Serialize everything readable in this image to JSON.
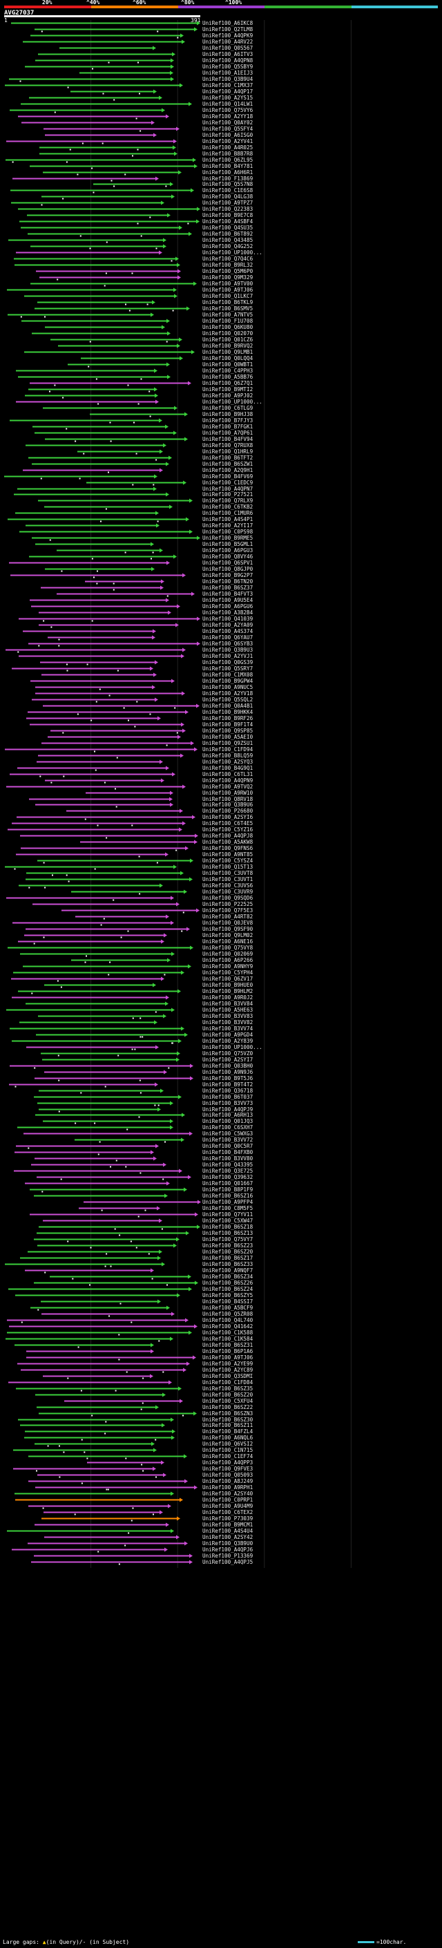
{
  "identity_scale": {
    "ticks": [
      "20%",
      "^40%",
      "^60%",
      "^80%",
      "^100%"
    ],
    "colors": [
      "#e41a1c",
      "#ff7f00",
      "#9c3cd0",
      "#33b233",
      "#3ec6d8"
    ]
  },
  "query": {
    "id": "AVG27037",
    "start": "1",
    "end": "391",
    "length": 391,
    "color": "#ffffff"
  },
  "hit_colors": {
    "green": "#3bd13b",
    "magenta": "#cc4fd6",
    "cyan": "#3ec6d8",
    "orange": "#ff8a00",
    "red": "#e41a1c"
  },
  "hits": [
    {
      "id": "UniRef100_A6IKC8",
      "c": "green"
    },
    {
      "id": "UniRef100_Q2TLM8",
      "c": "green"
    },
    {
      "id": "UniRef100_A4QPK9",
      "c": "green"
    },
    {
      "id": "UniRef100_A4RV22",
      "c": "green"
    },
    {
      "id": "UniRef100_Q0S567",
      "c": "green"
    },
    {
      "id": "UniRef100_A6ITV3",
      "c": "green"
    },
    {
      "id": "UniRef100_A4QPN8",
      "c": "green"
    },
    {
      "id": "UniRef100_Q5SBY9",
      "c": "green"
    },
    {
      "id": "UniRef100_A1EIJ3",
      "c": "green"
    },
    {
      "id": "UniRef100_Q3B9U4",
      "c": "green"
    },
    {
      "id": "UniRef100_C1MX37",
      "c": "green"
    },
    {
      "id": "UniRef100_A4QP17",
      "c": "green"
    },
    {
      "id": "UniRef100_A2YS15",
      "c": "green"
    },
    {
      "id": "UniRef100_Q14LW1",
      "c": "green"
    },
    {
      "id": "UniRef100_Q75VY6",
      "c": "green"
    },
    {
      "id": "UniRef100_A2YY18",
      "c": "magenta"
    },
    {
      "id": "UniRef100_Q0AY02",
      "c": "magenta"
    },
    {
      "id": "UniRef100_Q5SFY4",
      "c": "magenta"
    },
    {
      "id": "UniRef100_A6ISG0",
      "c": "magenta"
    },
    {
      "id": "UniRef100_A2YV41",
      "c": "magenta"
    },
    {
      "id": "UniRef100_A4R025",
      "c": "green"
    },
    {
      "id": "UniRef100_B8B7R8",
      "c": "green"
    },
    {
      "id": "UniRef100_Q6ZL95",
      "c": "green"
    },
    {
      "id": "UniRef100_B4Y781",
      "c": "green"
    },
    {
      "id": "UniRef100_A6H6R1",
      "c": "green"
    },
    {
      "id": "UniRef100_F13869",
      "c": "magenta"
    },
    {
      "id": "UniRef100_Q5S7N8",
      "c": "green"
    },
    {
      "id": "UniRef100_C1E6S8",
      "c": "green"
    },
    {
      "id": "UniRef100_Q4LG38",
      "c": "green"
    },
    {
      "id": "UniRef100_A9TPZ7",
      "c": "green"
    },
    {
      "id": "UniRef100_Q22383",
      "c": "green"
    },
    {
      "id": "UniRef100_B9E7C8",
      "c": "green"
    },
    {
      "id": "UniRef100_A4SBF4",
      "c": "green"
    },
    {
      "id": "UniRef100_Q4SU35",
      "c": "green"
    },
    {
      "id": "UniRef100_B6T892",
      "c": "green"
    },
    {
      "id": "UniRef100_Q43485",
      "c": "green"
    },
    {
      "id": "UniRef100_Q4G252",
      "c": "green"
    },
    {
      "id": "UniRef100_UP1000...",
      "c": "magenta"
    },
    {
      "id": "UniRef100_Q7Q4C6",
      "c": "green"
    },
    {
      "id": "UniRef100_B9RL32",
      "c": "green"
    },
    {
      "id": "UniRef100_Q5M6P0",
      "c": "magenta"
    },
    {
      "id": "UniRef100_Q9M329",
      "c": "magenta"
    },
    {
      "id": "UniRef100_A9TV00",
      "c": "green"
    },
    {
      "id": "UniRef100_A9TJ06",
      "c": "green"
    },
    {
      "id": "UniRef100_Q1LKC7",
      "c": "green"
    },
    {
      "id": "UniRef100_B6TKL9",
      "c": "green"
    },
    {
      "id": "UniRef100_B6SMV5",
      "c": "green"
    },
    {
      "id": "UniRef100_A7NTV5",
      "c": "green"
    },
    {
      "id": "UniRef100_F1U708",
      "c": "green"
    },
    {
      "id": "UniRef100_Q6KU80",
      "c": "green"
    },
    {
      "id": "UniRef100_Q02070",
      "c": "green"
    },
    {
      "id": "UniRef100_Q01CZ6",
      "c": "green"
    },
    {
      "id": "UniRef100_B9RVQ2",
      "c": "green"
    },
    {
      "id": "UniRef100_Q9LMB1",
      "c": "green"
    },
    {
      "id": "UniRef100_Q0LQQ4",
      "c": "green"
    },
    {
      "id": "UniRef100_Q0WBT1",
      "c": "green"
    },
    {
      "id": "UniRef100_C4PPH3",
      "c": "green"
    },
    {
      "id": "UniRef100_A5BB76",
      "c": "green"
    },
    {
      "id": "UniRef100_Q6Z7Q1",
      "c": "magenta"
    },
    {
      "id": "UniRef100_B9MTI2",
      "c": "green"
    },
    {
      "id": "UniRef100_A9PJ02",
      "c": "green"
    },
    {
      "id": "UniRef100_UP1000...",
      "c": "magenta"
    },
    {
      "id": "UniRef100_C6TLG9",
      "c": "green"
    },
    {
      "id": "UniRef100_B9HJ38",
      "c": "green"
    },
    {
      "id": "UniRef100_B7FJY3",
      "c": "green"
    },
    {
      "id": "UniRef100_B7FGK1",
      "c": "green"
    },
    {
      "id": "UniRef100_A7QP61",
      "c": "green"
    },
    {
      "id": "UniRef100_B4FV94",
      "c": "green"
    },
    {
      "id": "UniRef100_Q7RUX8",
      "c": "green"
    },
    {
      "id": "UniRef100_Q1HRL9",
      "c": "green"
    },
    {
      "id": "UniRef100_B6TFT2",
      "c": "green"
    },
    {
      "id": "UniRef100_B6SZW1",
      "c": "green"
    },
    {
      "id": "UniRef100_A2Q9H1",
      "c": "magenta"
    },
    {
      "id": "UniRef100_B4FV69",
      "c": "green"
    },
    {
      "id": "UniRef100_C1EDC9",
      "c": "green"
    },
    {
      "id": "UniRef100_A4QPN7",
      "c": "green"
    },
    {
      "id": "UniRef100_P27521",
      "c": "green"
    },
    {
      "id": "UniRef100_Q7RLX9",
      "c": "green"
    },
    {
      "id": "UniRef100_C6TKB2",
      "c": "green"
    },
    {
      "id": "UniRef100_C1MUR6",
      "c": "green"
    },
    {
      "id": "UniRef100_A4S4P1",
      "c": "green"
    },
    {
      "id": "UniRef100_A2YI17",
      "c": "green"
    },
    {
      "id": "UniRef100_C0PS98",
      "c": "green"
    },
    {
      "id": "UniRef100_B9RME5",
      "c": "green"
    },
    {
      "id": "UniRef100_B5GML1",
      "c": "green"
    },
    {
      "id": "UniRef100_A6PGU3",
      "c": "green"
    },
    {
      "id": "UniRef100_Q8VY46",
      "c": "green"
    },
    {
      "id": "UniRef100_Q6SPV1",
      "c": "magenta"
    },
    {
      "id": "UniRef100_Q8GJP0",
      "c": "green"
    },
    {
      "id": "UniRef100_B9G2P7",
      "c": "magenta"
    },
    {
      "id": "UniRef100_B6TN20",
      "c": "magenta"
    },
    {
      "id": "UniRef100_B6SZ37",
      "c": "magenta"
    },
    {
      "id": "UniRef100_B4FVT3",
      "c": "magenta"
    },
    {
      "id": "UniRef100_A9U5E4",
      "c": "magenta"
    },
    {
      "id": "UniRef100_A6PGU6",
      "c": "magenta"
    },
    {
      "id": "UniRef100_A3B2B4",
      "c": "magenta"
    },
    {
      "id": "UniRef100_Q41039",
      "c": "magenta"
    },
    {
      "id": "UniRef100_A2YA09",
      "c": "magenta"
    },
    {
      "id": "UniRef100_A4S374",
      "c": "magenta"
    },
    {
      "id": "UniRef100_Q6YAU7",
      "c": "magenta"
    },
    {
      "id": "UniRef100_Q6SYB3",
      "c": "magenta"
    },
    {
      "id": "UniRef100_Q3B9U3",
      "c": "magenta"
    },
    {
      "id": "UniRef100_A2YVJ1",
      "c": "magenta"
    },
    {
      "id": "UniRef100_Q0GS39",
      "c": "magenta"
    },
    {
      "id": "UniRef100_Q5SRY7",
      "c": "magenta"
    },
    {
      "id": "UniRef100_C1MX08",
      "c": "magenta"
    },
    {
      "id": "UniRef100_B9GPW4",
      "c": "magenta"
    },
    {
      "id": "UniRef100_A9NUC5",
      "c": "magenta"
    },
    {
      "id": "UniRef100_A2YV18",
      "c": "magenta"
    },
    {
      "id": "UniRef100_Q5SQL2",
      "c": "magenta"
    },
    {
      "id": "UniRef100_Q0A4B1",
      "c": "magenta"
    },
    {
      "id": "UniRef100_B9HKK4",
      "c": "magenta"
    },
    {
      "id": "UniRef100_B9RF26",
      "c": "magenta"
    },
    {
      "id": "UniRef100_B9F1T4",
      "c": "magenta"
    },
    {
      "id": "UniRef100_Q9SP85",
      "c": "magenta"
    },
    {
      "id": "UniRef100_A5AEI0",
      "c": "magenta"
    },
    {
      "id": "UniRef100_Q9ZSU1",
      "c": "magenta"
    },
    {
      "id": "UniRef100_C1FD94",
      "c": "magenta"
    },
    {
      "id": "UniRef100_B8LQ59",
      "c": "magenta"
    },
    {
      "id": "UniRef100_A2SYQ3",
      "c": "magenta"
    },
    {
      "id": "UniRef100_B4G9Q1",
      "c": "magenta"
    },
    {
      "id": "UniRef100_C6TL31",
      "c": "magenta"
    },
    {
      "id": "UniRef100_A4QPN9",
      "c": "magenta"
    },
    {
      "id": "UniRef100_A9TVQ2",
      "c": "magenta"
    },
    {
      "id": "UniRef100_A9RW10",
      "c": "magenta"
    },
    {
      "id": "UniRef100_Q8RV18",
      "c": "magenta"
    },
    {
      "id": "UniRef100_Q3B9U6",
      "c": "magenta"
    },
    {
      "id": "UniRef100_P26680",
      "c": "magenta"
    },
    {
      "id": "UniRef100_A2SYI6",
      "c": "magenta"
    },
    {
      "id": "UniRef100_C6T4E5",
      "c": "magenta"
    },
    {
      "id": "UniRef100_C5YZ16",
      "c": "magenta"
    },
    {
      "id": "UniRef100_A4QPJ8",
      "c": "magenta"
    },
    {
      "id": "UniRef100_A5AKW8",
      "c": "magenta"
    },
    {
      "id": "UniRef100_Q9FNS6",
      "c": "magenta"
    },
    {
      "id": "UniRef100_A9NT85",
      "c": "magenta"
    },
    {
      "id": "UniRef100_C5YSZ4",
      "c": "green"
    },
    {
      "id": "UniRef100_Q15T13",
      "c": "green"
    },
    {
      "id": "UniRef100_C3UVT8",
      "c": "green"
    },
    {
      "id": "UniRef100_C3UVT1",
      "c": "green"
    },
    {
      "id": "UniRef100_C3UVS6",
      "c": "green"
    },
    {
      "id": "UniRef100_C3UVR9",
      "c": "green"
    },
    {
      "id": "UniRef100_Q9SQD6",
      "c": "magenta"
    },
    {
      "id": "UniRef100_P22525",
      "c": "magenta"
    },
    {
      "id": "UniRef100_Q7F5E3",
      "c": "magenta"
    },
    {
      "id": "UniRef100_A4RT82",
      "c": "magenta"
    },
    {
      "id": "UniRef100_Q0JEV8",
      "c": "magenta"
    },
    {
      "id": "UniRef100_Q9SF90",
      "c": "magenta"
    },
    {
      "id": "UniRef100_Q9LM02",
      "c": "magenta"
    },
    {
      "id": "UniRef100_A6NE16",
      "c": "magenta"
    },
    {
      "id": "UniRef100_Q75VY8",
      "c": "green"
    },
    {
      "id": "UniRef100_Q02069",
      "c": "green"
    },
    {
      "id": "UniRef100_A6P266",
      "c": "green"
    },
    {
      "id": "UniRef100_A9NHY9",
      "c": "green"
    },
    {
      "id": "UniRef100_C5YPH4",
      "c": "green"
    },
    {
      "id": "UniRef100_Q6ZV17",
      "c": "magenta"
    },
    {
      "id": "UniRef100_B9HUE0",
      "c": "green"
    },
    {
      "id": "UniRef100_B9HLM2",
      "c": "green"
    },
    {
      "id": "UniRef100_A9R0J2",
      "c": "magenta"
    },
    {
      "id": "UniRef100_B3VV84",
      "c": "green"
    },
    {
      "id": "UniRef100_A5HE63",
      "c": "green"
    },
    {
      "id": "UniRef100_B3VV83",
      "c": "green"
    },
    {
      "id": "UniRef100_B3VV82",
      "c": "green"
    },
    {
      "id": "UniRef100_B3VV74",
      "c": "green"
    },
    {
      "id": "UniRef100_A9PGD4",
      "c": "green"
    },
    {
      "id": "UniRef100_A2Y839",
      "c": "green"
    },
    {
      "id": "UniRef100_UP1000...",
      "c": "magenta"
    },
    {
      "id": "UniRef100_Q75VZ0",
      "c": "green"
    },
    {
      "id": "UniRef100_A2SYI7",
      "c": "green"
    },
    {
      "id": "UniRef100_Q03BH0",
      "c": "magenta"
    },
    {
      "id": "UniRef100_A9N9J6",
      "c": "magenta"
    },
    {
      "id": "UniRef100_B9T5J6",
      "c": "magenta"
    },
    {
      "id": "UniRef100_B9T4T2",
      "c": "magenta"
    },
    {
      "id": "UniRef100_Q36718",
      "c": "green"
    },
    {
      "id": "UniRef100_B6T037",
      "c": "green"
    },
    {
      "id": "UniRef100_B3VV73",
      "c": "green"
    },
    {
      "id": "UniRef100_A4QPJ9",
      "c": "green"
    },
    {
      "id": "UniRef100_A6RH13",
      "c": "green"
    },
    {
      "id": "UniRef100_Q01JQ3",
      "c": "green"
    },
    {
      "id": "UniRef100_C6SXH7",
      "c": "green"
    },
    {
      "id": "UniRef100_C5WXG3",
      "c": "magenta"
    },
    {
      "id": "UniRef100_B3VV72",
      "c": "green"
    },
    {
      "id": "UniRef100_Q0C5R7",
      "c": "magenta"
    },
    {
      "id": "UniRef100_B4FXB0",
      "c": "magenta"
    },
    {
      "id": "UniRef100_B3VV80",
      "c": "magenta"
    },
    {
      "id": "UniRef100_Q43395",
      "c": "magenta"
    },
    {
      "id": "UniRef100_Q3E725",
      "c": "magenta"
    },
    {
      "id": "UniRef100_Q39632",
      "c": "magenta"
    },
    {
      "id": "UniRef100_Q01667",
      "c": "magenta"
    },
    {
      "id": "UniRef100_B8P1F9",
      "c": "green"
    },
    {
      "id": "UniRef100_B6SZ16",
      "c": "green"
    },
    {
      "id": "UniRef100_A9PFP4",
      "c": "magenta"
    },
    {
      "id": "UniRef100_C8M5F5",
      "c": "magenta"
    },
    {
      "id": "UniRef100_Q7YV11",
      "c": "magenta"
    },
    {
      "id": "UniRef100_C5XW47",
      "c": "magenta"
    },
    {
      "id": "UniRef100_B6SZ18",
      "c": "green"
    },
    {
      "id": "UniRef100_B6SZ13",
      "c": "green"
    },
    {
      "id": "UniRef100_Q75VY7",
      "c": "green"
    },
    {
      "id": "UniRef100_B6SZ23",
      "c": "green"
    },
    {
      "id": "UniRef100_B6SZ20",
      "c": "green"
    },
    {
      "id": "UniRef100_B6SZ17",
      "c": "green"
    },
    {
      "id": "UniRef100_B6SZ33",
      "c": "green"
    },
    {
      "id": "UniRef100_A9NQF7",
      "c": "magenta"
    },
    {
      "id": "UniRef100_B6SZ34",
      "c": "green"
    },
    {
      "id": "UniRef100_B6SZ26",
      "c": "green"
    },
    {
      "id": "UniRef100_B6SZ24",
      "c": "green"
    },
    {
      "id": "UniRef100_B6SZY5",
      "c": "green"
    },
    {
      "id": "UniRef100_B4SSI7",
      "c": "green"
    },
    {
      "id": "UniRef100_A5BCF9",
      "c": "green"
    },
    {
      "id": "UniRef100_Q5ZR08",
      "c": "magenta"
    },
    {
      "id": "UniRef100_Q4L740",
      "c": "magenta"
    },
    {
      "id": "UniRef100_Q41642",
      "c": "magenta"
    },
    {
      "id": "UniRef100_C1K588",
      "c": "green"
    },
    {
      "id": "UniRef100_C1K584",
      "c": "green"
    },
    {
      "id": "UniRef100_B6SZ31",
      "c": "green"
    },
    {
      "id": "UniRef100_B6P1A6",
      "c": "magenta"
    },
    {
      "id": "UniRef100_A9TJ06",
      "c": "magenta"
    },
    {
      "id": "UniRef100_A2YE99",
      "c": "magenta"
    },
    {
      "id": "UniRef100_A2YC89",
      "c": "magenta"
    },
    {
      "id": "UniRef100_Q3SDMI",
      "c": "magenta"
    },
    {
      "id": "UniRef100_C1FD84",
      "c": "magenta"
    },
    {
      "id": "UniRef100_B6SZ35",
      "c": "green"
    },
    {
      "id": "UniRef100_B6SZ20",
      "c": "green"
    },
    {
      "id": "UniRef100_C5XFU4",
      "c": "magenta"
    },
    {
      "id": "UniRef100_B6SZ22",
      "c": "green"
    },
    {
      "id": "UniRef100_B6SZN3",
      "c": "green"
    },
    {
      "id": "UniRef100_B6SZ30",
      "c": "green"
    },
    {
      "id": "UniRef100_B6SZ11",
      "c": "green"
    },
    {
      "id": "UniRef100_B4FZL4",
      "c": "green"
    },
    {
      "id": "UniRef100_A6NQL6",
      "c": "green"
    },
    {
      "id": "UniRef100_Q6VSI2",
      "c": "green"
    },
    {
      "id": "UniRef100_C1N715",
      "c": "green"
    },
    {
      "id": "UniRef100_C1EF74",
      "c": "green"
    },
    {
      "id": "UniRef100_A4QPP3",
      "c": "magenta"
    },
    {
      "id": "UniRef100_Q9FVE3",
      "c": "magenta"
    },
    {
      "id": "UniRef100_Q05093",
      "c": "magenta"
    },
    {
      "id": "UniRef100_A8J249",
      "c": "magenta"
    },
    {
      "id": "UniRef100_A9RPH1",
      "c": "magenta"
    },
    {
      "id": "UniRef100_A2SY40",
      "c": "green"
    },
    {
      "id": "UniRef100_C0PRP1",
      "c": "orange"
    },
    {
      "id": "UniRef100_A9U4M9",
      "c": "magenta"
    },
    {
      "id": "UniRef100_C6TEX2",
      "c": "magenta"
    },
    {
      "id": "UniRef100_P73039",
      "c": "orange"
    },
    {
      "id": "UniRef100_B9MCM1",
      "c": "magenta"
    },
    {
      "id": "UniRef100_A4S4U4",
      "c": "green"
    },
    {
      "id": "UniRef100_A2SY42",
      "c": "magenta"
    },
    {
      "id": "UniRef100_Q3B9U0",
      "c": "magenta"
    },
    {
      "id": "UniRef100_A4QPJ6",
      "c": "magenta"
    },
    {
      "id": "UniRef100_P13369",
      "c": "magenta"
    },
    {
      "id": "UniRef100_A4QPJ5",
      "c": "magenta"
    }
  ],
  "legend": {
    "gap_prefix": "Large gaps: ",
    "gap_marker": "▲",
    "gap_text": "(in Query)/- (in Subject)",
    "scale_text": "=100char."
  }
}
